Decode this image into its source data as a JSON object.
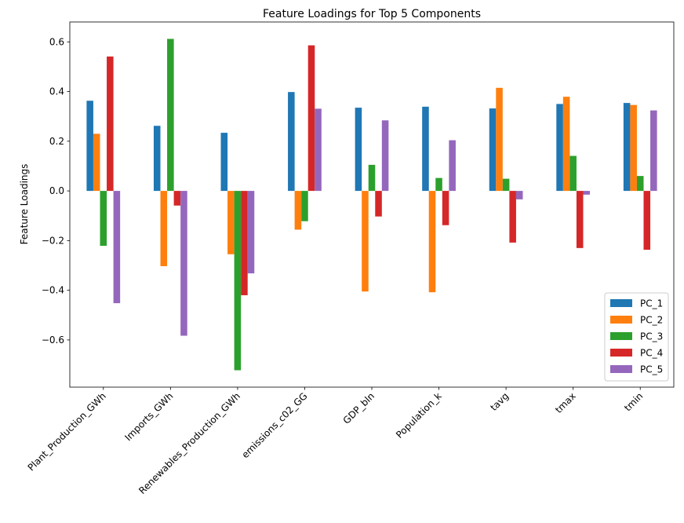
{
  "chart_data": {
    "type": "bar",
    "title": "Feature Loadings for Top 5 Components",
    "xlabel": "",
    "ylabel": "Feature Loadings",
    "categories": [
      "Plant_Production_GWh",
      "Imports_GWh",
      "Renewables_Production_GWh",
      "emissions_c02_GG",
      "GDP_bln",
      "Population_k",
      "tavg",
      "tmax",
      "tmin"
    ],
    "ylim": [
      -0.79,
      0.68
    ],
    "yticks": [
      -0.6,
      -0.4,
      -0.2,
      0.0,
      0.2,
      0.4,
      0.6
    ],
    "ytick_labels": [
      "−0.6",
      "−0.4",
      "−0.2",
      "0.0",
      "0.2",
      "0.4",
      "0.6"
    ],
    "grid": false,
    "legend_position": "lower-right",
    "series": [
      {
        "name": "PC_1",
        "color": "#1f77b4",
        "values": [
          0.363,
          0.262,
          0.234,
          0.398,
          0.335,
          0.339,
          0.332,
          0.35,
          0.354
        ]
      },
      {
        "name": "PC_2",
        "color": "#ff7f0e",
        "values": [
          0.23,
          -0.303,
          -0.255,
          -0.156,
          -0.405,
          -0.408,
          0.415,
          0.379,
          0.346
        ]
      },
      {
        "name": "PC_3",
        "color": "#2ca02c",
        "values": [
          -0.221,
          0.612,
          -0.722,
          -0.122,
          0.105,
          0.052,
          0.049,
          0.141,
          0.06
        ]
      },
      {
        "name": "PC_4",
        "color": "#d62728",
        "values": [
          0.541,
          -0.059,
          -0.42,
          0.586,
          -0.103,
          -0.138,
          -0.208,
          -0.23,
          -0.237
        ]
      },
      {
        "name": "PC_5",
        "color": "#9467bd",
        "values": [
          -0.452,
          -0.583,
          -0.332,
          0.331,
          0.284,
          0.204,
          -0.034,
          -0.015,
          0.324
        ]
      }
    ]
  }
}
